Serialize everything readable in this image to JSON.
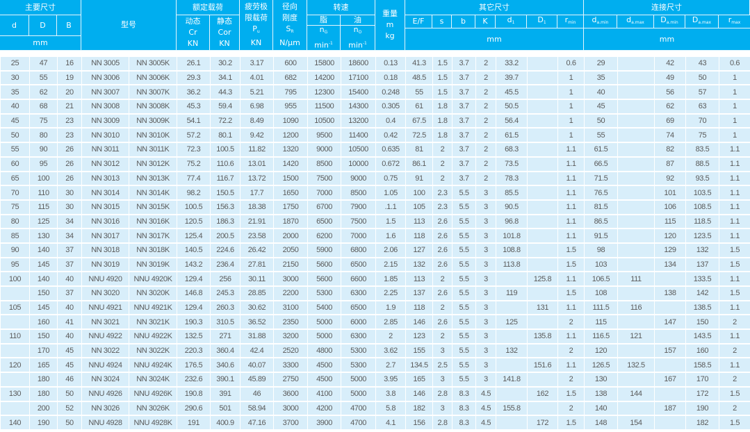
{
  "colors": {
    "header_bg": "#00aeef",
    "row_bg": "#d8eefa",
    "text": "#5a5a5a"
  },
  "header": {
    "main_dims": "主要尺寸",
    "d": "d",
    "D": "D",
    "B": "B",
    "mm": "mm",
    "model": "型号",
    "rated_load": "额定载荷",
    "dynamic": "动态",
    "Cr": "Cr",
    "static": "静态",
    "Cor": "Cor",
    "KN": "KN",
    "fatigue_1": "疲劳极",
    "fatigue_2": "限载荷",
    "Pu_main": "P",
    "Pu_sub": "u",
    "radial_1": "径向",
    "radial_2": "刚度",
    "Sr_main": "S",
    "Sr_sub": "R",
    "Sr_unit": "N/μm",
    "speed": "转速",
    "grease": "脂",
    "oil": "油",
    "nG_main": "n",
    "nG_sub": "G",
    "nO_main": "n",
    "nO_sub": "O",
    "min": "min",
    "min_sup": "-1",
    "weight": "重量",
    "m": "m",
    "kg": "kg",
    "other_dims": "其它尺寸",
    "EF": "E/F",
    "s": "s",
    "b": "b",
    "K": "K",
    "d1_main": "d",
    "d1_sub": "1",
    "D1_main": "D",
    "D1_sub": "1",
    "rmin_main": "r",
    "rmin_sub": "min",
    "conn_dims": "连接尺寸",
    "damin_main": "d",
    "damin_sub": "a.min",
    "damax_main": "d",
    "damax_sub": "a.max",
    "Damin_main": "D",
    "Damin_sub": "a.min",
    "Damax_main": "D",
    "Damax_sub": "a.max",
    "rmax_main": "r",
    "rmax_sub": "max"
  },
  "rows": [
    [
      "25",
      "47",
      "16",
      "NN 3005",
      "NN 3005K",
      "26.1",
      "30.2",
      "3.17",
      "600",
      "15800",
      "18600",
      "0.13",
      "41.3",
      "1.5",
      "3.7",
      "2",
      "33.2",
      "",
      "0.6",
      "29",
      "",
      "42",
      "43",
      "0.6"
    ],
    [
      "30",
      "55",
      "19",
      "NN 3006",
      "NN 3006K",
      "29.3",
      "34.1",
      "4.01",
      "682",
      "14200",
      "17100",
      "0.18",
      "48.5",
      "1.5",
      "3.7",
      "2",
      "39.7",
      "",
      "1",
      "35",
      "",
      "49",
      "50",
      "1"
    ],
    [
      "35",
      "62",
      "20",
      "NN 3007",
      "NN 3007K",
      "36.2",
      "44.3",
      "5.21",
      "795",
      "12300",
      "15400",
      "0.248",
      "55",
      "1.5",
      "3.7",
      "2",
      "45.5",
      "",
      "1",
      "40",
      "",
      "56",
      "57",
      "1"
    ],
    [
      "40",
      "68",
      "21",
      "NN 3008",
      "NN 3008K",
      "45.3",
      "59.4",
      "6.98",
      "955",
      "11500",
      "14300",
      "0.305",
      "61",
      "1.8",
      "3.7",
      "2",
      "50.5",
      "",
      "1",
      "45",
      "",
      "62",
      "63",
      "1"
    ],
    [
      "45",
      "75",
      "23",
      "NN 3009",
      "NN 3009K",
      "54.1",
      "72.2",
      "8.49",
      "1090",
      "10500",
      "13200",
      "0.4",
      "67.5",
      "1.8",
      "3.7",
      "2",
      "56.4",
      "",
      "1",
      "50",
      "",
      "69",
      "70",
      "1"
    ],
    [
      "50",
      "80",
      "23",
      "NN 3010",
      "NN 3010K",
      "57.2",
      "80.1",
      "9.42",
      "1200",
      "9500",
      "11400",
      "0.42",
      "72.5",
      "1.8",
      "3.7",
      "2",
      "61.5",
      "",
      "1",
      "55",
      "",
      "74",
      "75",
      "1"
    ],
    [
      "55",
      "90",
      "26",
      "NN 3011",
      "NN 3011K",
      "72.3",
      "100.5",
      "11.82",
      "1320",
      "9000",
      "10500",
      "0.635",
      "81",
      "2",
      "3.7",
      "2",
      "68.3",
      "",
      "1.1",
      "61.5",
      "",
      "82",
      "83.5",
      "1.1"
    ],
    [
      "60",
      "95",
      "26",
      "NN 3012",
      "NN 3012K",
      "75.2",
      "110.6",
      "13.01",
      "1420",
      "8500",
      "10000",
      "0.672",
      "86.1",
      "2",
      "3.7",
      "2",
      "73.5",
      "",
      "1.1",
      "66.5",
      "",
      "87",
      "88.5",
      "1.1"
    ],
    [
      "65",
      "100",
      "26",
      "NN 3013",
      "NN 3013K",
      "77.4",
      "116.7",
      "13.72",
      "1500",
      "7500",
      "9000",
      "0.75",
      "91",
      "2",
      "3.7",
      "2",
      "78.3",
      "",
      "1.1",
      "71.5",
      "",
      "92",
      "93.5",
      "1.1"
    ],
    [
      "70",
      "110",
      "30",
      "NN 3014",
      "NN 3014K",
      "98.2",
      "150.5",
      "17.7",
      "1650",
      "7000",
      "8500",
      "1.05",
      "100",
      "2.3",
      "5.5",
      "3",
      "85.5",
      "",
      "1.1",
      "76.5",
      "",
      "101",
      "103.5",
      "1.1"
    ],
    [
      "75",
      "115",
      "30",
      "NN 3015",
      "NN 3015K",
      "100.5",
      "156.3",
      "18.38",
      "1750",
      "6700",
      "7900",
      ".1.1",
      "105",
      "2.3",
      "5.5",
      "3",
      "90.5",
      "",
      "1.1",
      "81.5",
      "",
      "106",
      "108.5",
      "1.1"
    ],
    [
      "80",
      "125",
      "34",
      "NN 3016",
      "NN 3016K",
      "120.5",
      "186.3",
      "21.91",
      "1870",
      "6500",
      "7500",
      "1.5",
      "113",
      "2.6",
      "5.5",
      "3",
      "96.8",
      "",
      "1.1",
      "86.5",
      "",
      "115",
      "118.5",
      "1.1"
    ],
    [
      "85",
      "130",
      "34",
      "NN 3017",
      "NN 3017K",
      "125.4",
      "200.5",
      "23.58",
      "2000",
      "6200",
      "7000",
      "1.6",
      "118",
      "2.6",
      "5.5",
      "3",
      "101.8",
      "",
      "1.1",
      "91.5",
      "",
      "120",
      "123.5",
      "1.1"
    ],
    [
      "90",
      "140",
      "37",
      "NN 3018",
      "NN 3018K",
      "140.5",
      "224.6",
      "26.42",
      "2050",
      "5900",
      "6800",
      "2.06",
      "127",
      "2.6",
      "5.5",
      "3",
      "108.8",
      "",
      "1.5",
      "98",
      "",
      "129",
      "132",
      "1.5"
    ],
    [
      "95",
      "145",
      "37",
      "NN 3019",
      "NN 3019K",
      "143.2",
      "236.4",
      "27.81",
      "2150",
      "5600",
      "6500",
      "2.15",
      "132",
      "2.6",
      "5.5",
      "3",
      "113.8",
      "",
      "1.5",
      "103",
      "",
      "134",
      "137",
      "1.5"
    ],
    [
      "100",
      "140",
      "40",
      "NNU 4920",
      "NNU 4920K",
      "129.4",
      "256",
      "30.11",
      "3000",
      "5600",
      "6600",
      "1.85",
      "113",
      "2",
      "5.5",
      "3",
      "",
      "125.8",
      "1.1",
      "106.5",
      "111",
      "",
      "133.5",
      "1.1"
    ],
    [
      "",
      "150",
      "37",
      "NN 3020",
      "NN 3020K",
      "146.8",
      "245.3",
      "28.85",
      "2200",
      "5300",
      "6300",
      "2.25",
      "137",
      "2.6",
      "5.5",
      "3",
      "119",
      "",
      "1.5",
      "108",
      "",
      "138",
      "142",
      "1.5"
    ],
    [
      "105",
      "145",
      "40",
      "NNU 4921",
      "NNU 4921K",
      "129.4",
      "260.3",
      "30.62",
      "3100",
      "5400",
      "6500",
      "1.9",
      "118",
      "2",
      "5.5",
      "3",
      "",
      "131",
      "1.1",
      "111.5",
      "116",
      "",
      "138.5",
      "1.1"
    ],
    [
      "",
      "160",
      "41",
      "NN 3021",
      "NN 3021K",
      "190.3",
      "310.5",
      "36.52",
      "2350",
      "5000",
      "6000",
      "2.85",
      "146",
      "2.6",
      "5.5",
      "3",
      "125",
      "",
      "2",
      "115",
      "",
      "147",
      "150",
      "2"
    ],
    [
      "110",
      "150",
      "40",
      "NNU 4922",
      "NNU 4922K",
      "132.5",
      "271",
      "31.88",
      "3200",
      "5000",
      "6300",
      "2",
      "123",
      "2",
      "5.5",
      "3",
      "",
      "135.8",
      "1.1",
      "116.5",
      "121",
      "",
      "143.5",
      "1.1"
    ],
    [
      "",
      "170",
      "45",
      "NN 3022",
      "NN 3022K",
      "220.3",
      "360.4",
      "42.4",
      "2520",
      "4800",
      "5300",
      "3.62",
      "155",
      "3",
      "5.5",
      "3",
      "132",
      "",
      "2",
      "120",
      "",
      "157",
      "160",
      "2"
    ],
    [
      "120",
      "165",
      "45",
      "NNU 4924",
      "NNU 4924K",
      "176.5",
      "340.6",
      "40.07",
      "3300",
      "4500",
      "5300",
      "2.7",
      "134.5",
      "2.5",
      "5.5",
      "3",
      "",
      "151.6",
      "1.1",
      "126.5",
      "132.5",
      "",
      "158.5",
      "1.1"
    ],
    [
      "",
      "180",
      "46",
      "NN 3024",
      "NN 3024K",
      "232.6",
      "390.1",
      "45.89",
      "2750",
      "4500",
      "5000",
      "3.95",
      "165",
      "3",
      "5.5",
      "3",
      "141.8",
      "",
      "2",
      "130",
      "",
      "167",
      "170",
      "2"
    ],
    [
      "130",
      "180",
      "50",
      "NNU 4926",
      "NNU 4926K",
      "190.8",
      "391",
      "46",
      "3600",
      "4100",
      "5000",
      "3.8",
      "146",
      "2.8",
      "8.3",
      "4.5",
      "",
      "162",
      "1.5",
      "138",
      "144",
      "",
      "172",
      "1.5"
    ],
    [
      "",
      "200",
      "52",
      "NN 3026",
      "NN 3026K",
      "290.6",
      "501",
      "58.94",
      "3000",
      "4200",
      "4700",
      "5.8",
      "182",
      "3",
      "8.3",
      "4.5",
      "155.8",
      "",
      "2",
      "140",
      "",
      "187",
      "190",
      "2"
    ],
    [
      "140",
      "190",
      "50",
      "NNU 4928",
      "NNU 4928K",
      "191",
      "400.9",
      "47.16",
      "3700",
      "3900",
      "4700",
      "4.1",
      "156",
      "2.8",
      "8.3",
      "4.5",
      "",
      "172",
      "1.5",
      "148",
      "154",
      "",
      "182",
      "1.5"
    ]
  ]
}
